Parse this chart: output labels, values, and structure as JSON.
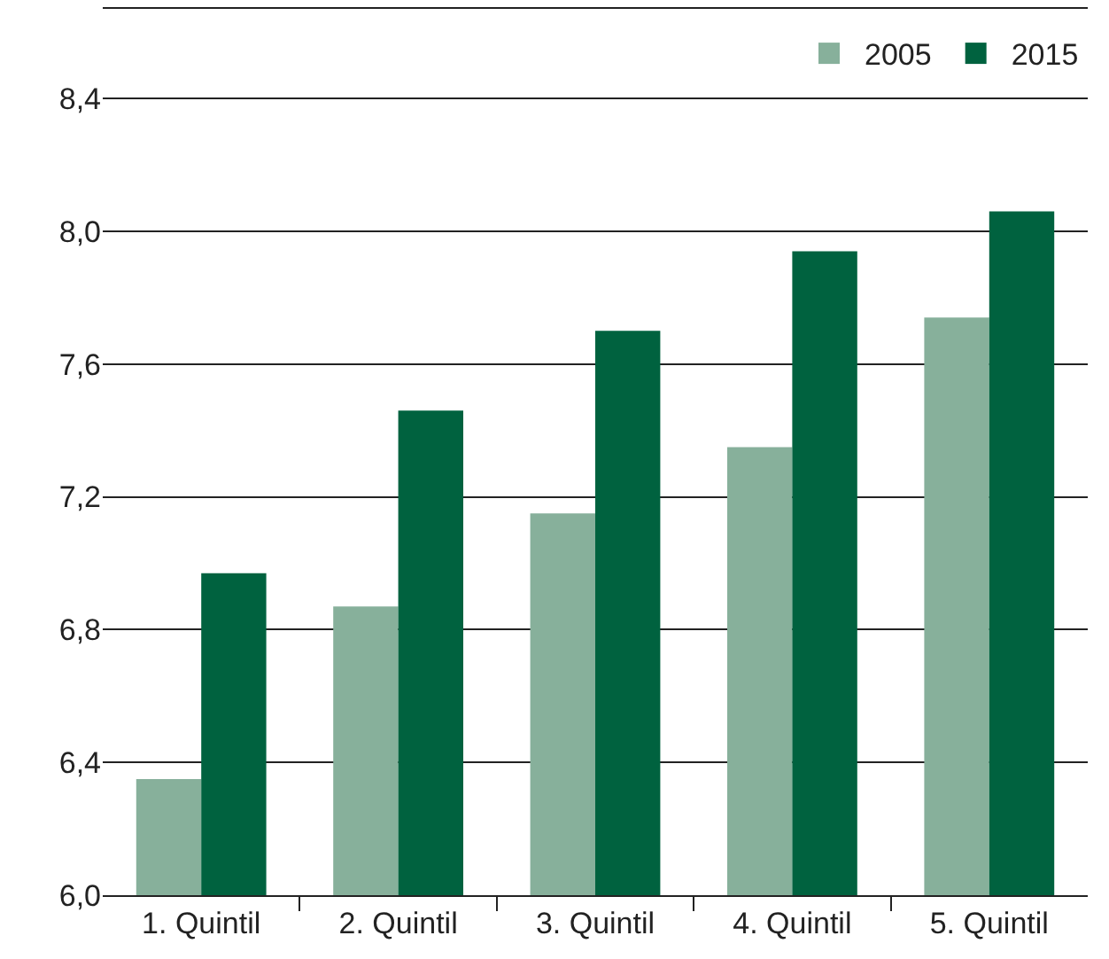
{
  "chart_data": {
    "type": "bar",
    "categories": [
      "1. Quintil",
      "2. Quintil",
      "3. Quintil",
      "4. Quintil",
      "5. Quintil"
    ],
    "series": [
      {
        "name": "2005",
        "color": "#87b09b",
        "values": [
          6.35,
          6.87,
          7.15,
          7.35,
          7.74
        ]
      },
      {
        "name": "2015",
        "color": "#00623f",
        "values": [
          6.97,
          7.46,
          7.7,
          7.94,
          8.06
        ]
      }
    ],
    "ylim": [
      6.0,
      8.67
    ],
    "yticks": [
      {
        "value": 6.0,
        "label": "6,0"
      },
      {
        "value": 6.4,
        "label": "6,4"
      },
      {
        "value": 6.8,
        "label": "6,8"
      },
      {
        "value": 7.2,
        "label": "7,2"
      },
      {
        "value": 7.6,
        "label": "7,6"
      },
      {
        "value": 8.0,
        "label": "8,0"
      },
      {
        "value": 8.4,
        "label": "8,4"
      }
    ],
    "grid": "y",
    "legend": "top right"
  }
}
